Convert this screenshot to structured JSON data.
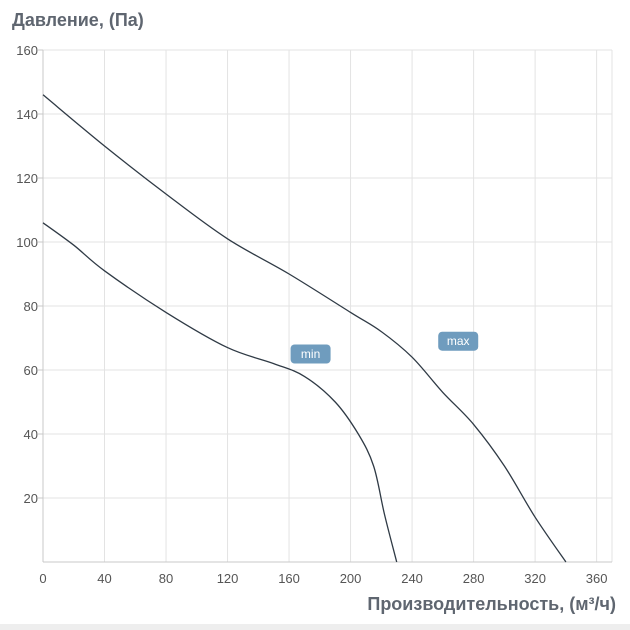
{
  "chart_data": {
    "type": "line",
    "ylabel": "Давление, (Па)",
    "xlabel": "Производительность, (м³/ч)",
    "xlim": [
      0,
      370
    ],
    "ylim": [
      0,
      160
    ],
    "x_ticks": [
      "0",
      "40",
      "80",
      "120",
      "160",
      "200",
      "240",
      "280",
      "320",
      "360"
    ],
    "y_ticks": [
      "20",
      "40",
      "60",
      "80",
      "100",
      "120",
      "140",
      "160"
    ],
    "grid": true,
    "series": [
      {
        "name": "min",
        "color": "#2f3a45",
        "points": [
          [
            0,
            106
          ],
          [
            20,
            99
          ],
          [
            40,
            91
          ],
          [
            80,
            78
          ],
          [
            120,
            67
          ],
          [
            150,
            62
          ],
          [
            170,
            58
          ],
          [
            190,
            50
          ],
          [
            205,
            40
          ],
          [
            215,
            30
          ],
          [
            222,
            15
          ],
          [
            230,
            0
          ]
        ]
      },
      {
        "name": "max",
        "color": "#2f3a45",
        "points": [
          [
            0,
            146
          ],
          [
            40,
            130
          ],
          [
            80,
            115
          ],
          [
            120,
            101
          ],
          [
            160,
            90
          ],
          [
            200,
            78
          ],
          [
            220,
            72
          ],
          [
            240,
            64
          ],
          [
            260,
            53
          ],
          [
            280,
            43
          ],
          [
            300,
            30
          ],
          [
            320,
            14
          ],
          [
            340,
            0
          ]
        ]
      }
    ],
    "annotations": [
      {
        "text": "min",
        "series": "min",
        "x": 174,
        "y": 65
      },
      {
        "text": "max",
        "series": "max",
        "x": 270,
        "y": 69
      }
    ],
    "tag_color": "#6f9cbe"
  }
}
